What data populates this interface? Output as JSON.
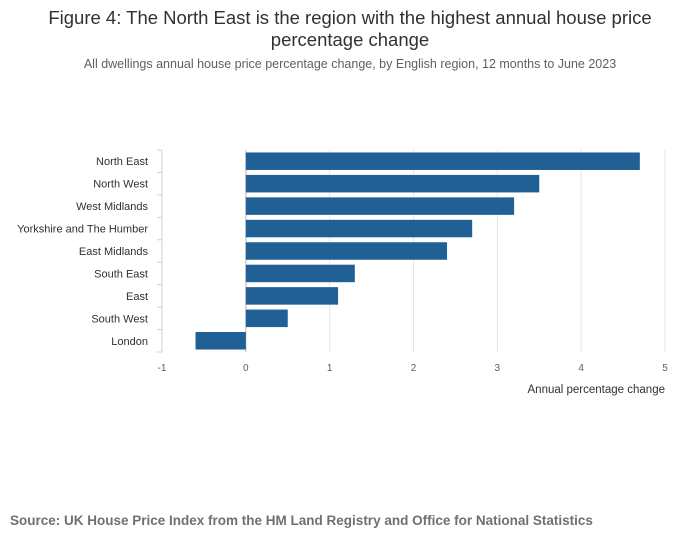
{
  "chart_data": {
    "type": "bar",
    "orientation": "horizontal",
    "title": "Figure 4: The North East is the region with the highest annual house price percentage change",
    "subtitle": "All dwellings annual house price percentage change, by English region, 12 months to June 2023",
    "categories": [
      "North East",
      "North West",
      "West Midlands",
      "Yorkshire and The Humber",
      "East Midlands",
      "South East",
      "East",
      "South West",
      "London"
    ],
    "values": [
      4.7,
      3.5,
      3.2,
      2.7,
      2.4,
      1.3,
      1.1,
      0.5,
      -0.6
    ],
    "xlabel": "Annual percentage change",
    "ylabel": "",
    "xlim": [
      -1,
      5
    ],
    "xticks": [
      "-1",
      "0",
      "1",
      "2",
      "3",
      "4",
      "5"
    ],
    "grid": true,
    "bar_color": "#206095"
  },
  "source": "Source: UK House Price Index from the HM Land Registry and Office for National Statistics"
}
